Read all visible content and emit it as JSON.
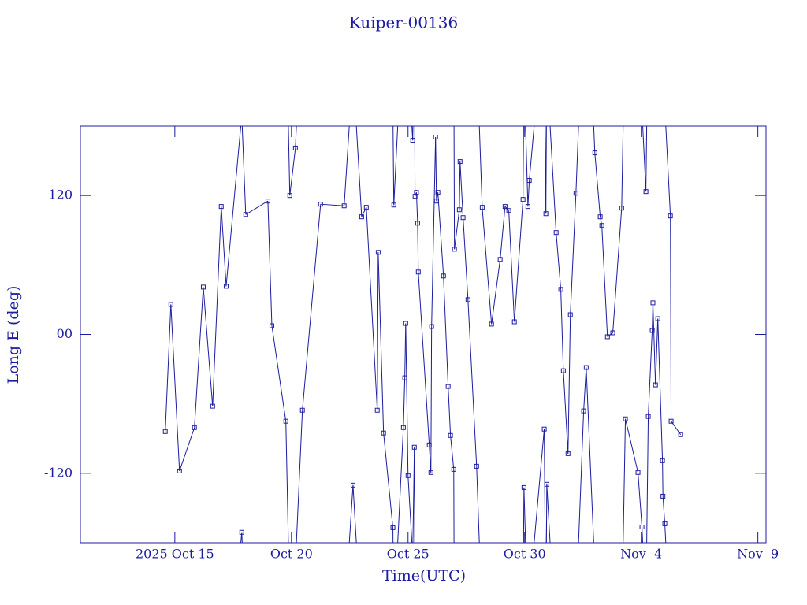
{
  "chart_data": {
    "type": "line",
    "title": "Kuiper-00136",
    "x_label": "Time(UTC)",
    "y_label": "Long E (deg)",
    "color": "#1c1ca0",
    "xlim": [
      10.95,
      40.35
    ],
    "ylim": [
      -180,
      180
    ],
    "xticks": [
      {
        "value": 15,
        "label": "2025 Oct 15"
      },
      {
        "value": 20,
        "label": "Oct 20"
      },
      {
        "value": 25,
        "label": "Oct 25"
      },
      {
        "value": 30,
        "label": "Oct 30"
      },
      {
        "value": 35,
        "label": "Nov  4"
      },
      {
        "value": 40,
        "label": "Nov  9"
      }
    ],
    "yticks": [
      -120,
      {
        "value": 0,
        "label": "00"
      },
      120
    ],
    "x": [
      14.59,
      14.83,
      15.2,
      15.84,
      16.22,
      16.62,
      16.99,
      17.2,
      17.87,
      18.04,
      18.99,
      19.16,
      19.76,
      19.93,
      20.17,
      20.47,
      21.25,
      22.26,
      22.64,
      23.01,
      23.21,
      23.68,
      23.72,
      23.95,
      24.35,
      24.39,
      24.8,
      24.86,
      24.9,
      25.0,
      25.2,
      25.27,
      25.3,
      25.36,
      25.41,
      25.44,
      25.91,
      25.98,
      26.01,
      26.18,
      26.22,
      26.28,
      26.52,
      26.72,
      26.82,
      26.96,
      26.99,
      27.2,
      27.23,
      27.36,
      27.57,
      27.94,
      28.18,
      28.58,
      28.95,
      29.16,
      29.32,
      29.56,
      29.93,
      29.97,
      30.14,
      30.2,
      30.84,
      30.91,
      30.95,
      31.35,
      31.55,
      31.66,
      31.86,
      31.96,
      32.2,
      32.53,
      32.64,
      33.01,
      33.24,
      33.31,
      33.55,
      33.78,
      34.16,
      34.32,
      34.86,
      35.03,
      35.2,
      35.3,
      35.47,
      35.5,
      35.61,
      35.71,
      35.91,
      35.93,
      36.01,
      36.25,
      36.28,
      36.69
    ],
    "values": [
      -83.9,
      25.9,
      -118,
      -80.5,
      40.9,
      -62,
      110.5,
      41.6,
      -171,
      103.6,
      115.2,
      7.5,
      -75,
      120,
      161,
      -65.5,
      112.5,
      111.1,
      -130.2,
      101.6,
      109.8,
      -65.5,
      70.9,
      -85.2,
      -167,
      111.8,
      -80.5,
      -37.5,
      9.5,
      -122,
      167.7,
      -97.5,
      119.3,
      122.7,
      96.1,
      53.9,
      -95.5,
      -119.3,
      6.8,
      170.5,
      115.2,
      122.7,
      50.5,
      -45,
      -87.3,
      -116.6,
      73.6,
      107.7,
      149.3,
      100.9,
      30,
      -113.9,
      109.8,
      8.9,
      64.8,
      110.5,
      107,
      10.9,
      116.6,
      -132.3,
      110.5,
      133,
      -81.8,
      104.3,
      -129.5,
      88,
      38.9,
      -31.4,
      -103,
      17,
      122,
      -66.1,
      -28.6,
      156.8,
      101.6,
      94.1,
      -2,
      1.4,
      109.1,
      -73,
      -119.3,
      -166.4,
      123.4,
      -70.9,
      3.4,
      27.3,
      -43.6,
      13.6,
      -109.1,
      -139.8,
      -163.6,
      102.3,
      -75,
      -86.6
    ]
  }
}
